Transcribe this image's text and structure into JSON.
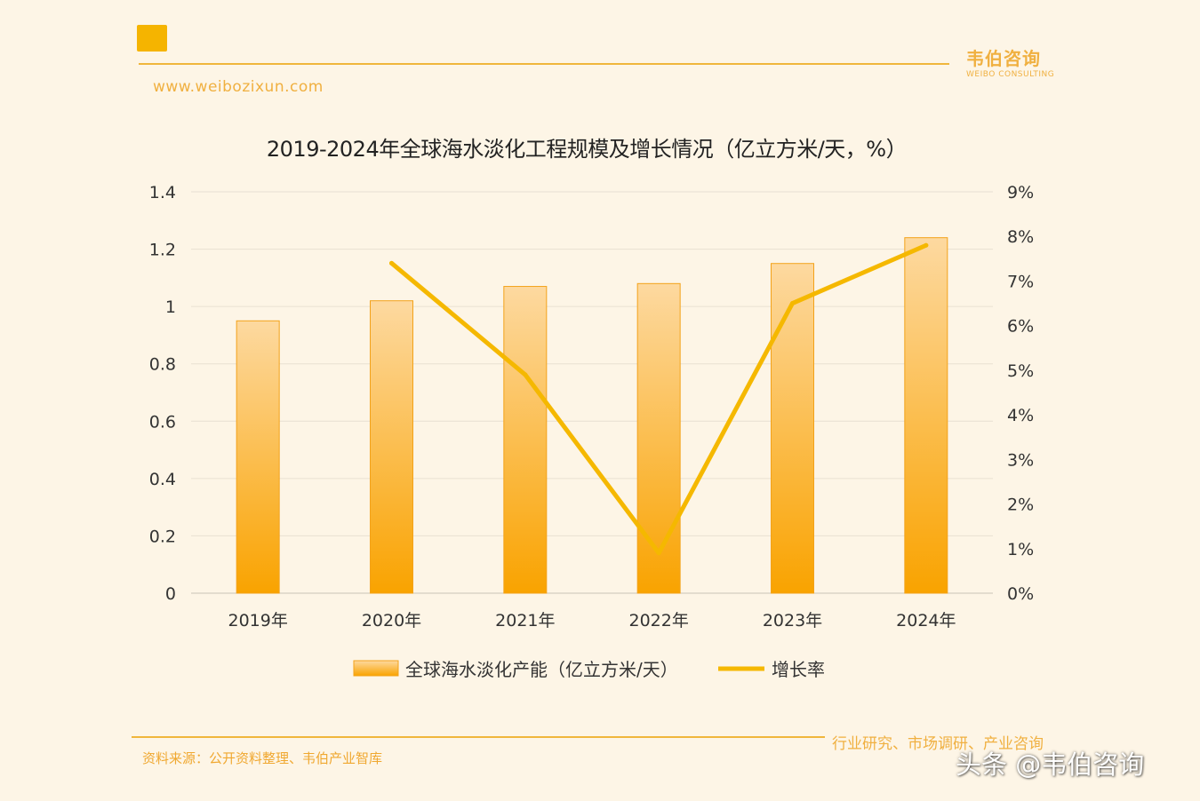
{
  "header": {
    "url": "www.weibozixun.com",
    "brand_cn": "韦伯咨询",
    "brand_en": "WEIBO CONSULTING"
  },
  "footer": {
    "source": "资料来源：公开资料整理、韦伯产业智库",
    "tagline": "行业研究、市场调研、产业咨询",
    "watermark": "头条 @韦伯咨询"
  },
  "colors": {
    "bar_top": "#fdd9a0",
    "bar_bottom": "#f9a300",
    "line": "#f5b800",
    "accent": "#f0b63c"
  },
  "chart_data": {
    "type": "bar",
    "title": "2019-2024年全球海水淡化工程规模及增长情况（亿立方米/天，%）",
    "categories": [
      "2019年",
      "2020年",
      "2021年",
      "2022年",
      "2023年",
      "2024年"
    ],
    "series": [
      {
        "name": "全球海水淡化产能（亿立方米/天）",
        "type": "bar",
        "axis": "left",
        "values": [
          0.95,
          1.02,
          1.07,
          1.08,
          1.15,
          1.24
        ]
      },
      {
        "name": "增长率",
        "type": "line",
        "axis": "right",
        "values": [
          null,
          7.4,
          4.9,
          0.9,
          6.5,
          7.8
        ]
      }
    ],
    "y_left": {
      "ylim": [
        0,
        1.4
      ],
      "ticks": [
        "0",
        "0.2",
        "0.4",
        "0.6",
        "0.8",
        "1",
        "1.2",
        "1.4"
      ]
    },
    "y_right": {
      "ylim": [
        0,
        9
      ],
      "ticks": [
        "0%",
        "1%",
        "2%",
        "3%",
        "4%",
        "5%",
        "6%",
        "7%",
        "8%",
        "9%"
      ]
    },
    "grid": true,
    "legend_position": "bottom"
  }
}
